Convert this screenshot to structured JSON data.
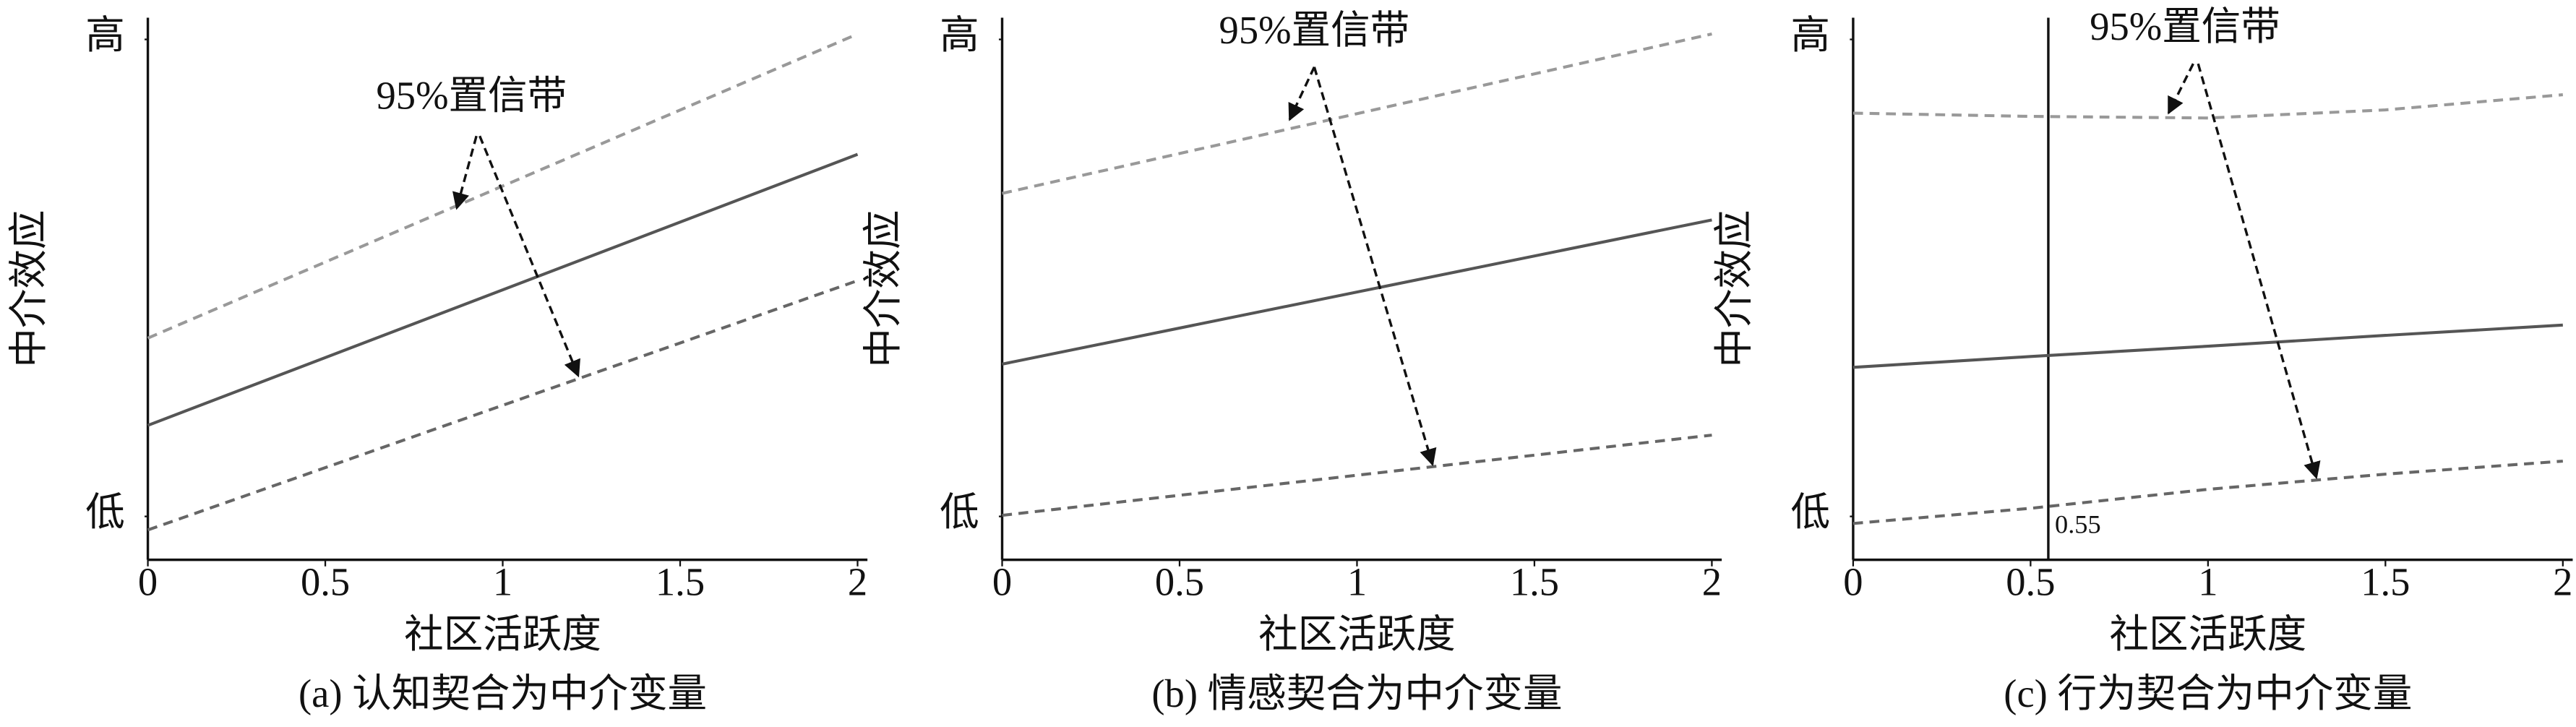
{
  "chart_data": [
    {
      "type": "line",
      "caption": "(a) 认知契合为中介变量",
      "xlabel": "社区活跃度",
      "ylabel": "中介效应",
      "annotation": "95%置信带",
      "x": [
        0,
        2
      ],
      "xlim": [
        0,
        2
      ],
      "xticks": [
        0,
        0.5,
        1,
        1.5,
        2
      ],
      "ylim": [
        0,
        1
      ],
      "yticks": [
        {
          "value": 0.08,
          "label": "低"
        },
        {
          "value": 0.96,
          "label": "高"
        }
      ],
      "series": [
        {
          "color": "#999999",
          "dash": true,
          "values": [
            0.409,
            0.97
          ]
        },
        {
          "color": "#555555",
          "dash": false,
          "values": [
            0.248,
            0.748
          ]
        },
        {
          "color": "#666666",
          "dash": true,
          "values": [
            0.055,
            0.515
          ]
        }
      ]
    },
    {
      "type": "line",
      "caption": "(b) 情感契合为中介变量",
      "xlabel": "社区活跃度",
      "ylabel": "中介效应",
      "annotation": "95%置信带",
      "x": [
        0,
        2
      ],
      "xlim": [
        0,
        2
      ],
      "xticks": [
        0,
        0.5,
        1,
        1.5,
        2
      ],
      "ylim": [
        0,
        1
      ],
      "yticks": [
        {
          "value": 0.08,
          "label": "低"
        },
        {
          "value": 0.96,
          "label": "高"
        }
      ],
      "series": [
        {
          "color": "#999999",
          "dash": true,
          "values": [
            0.676,
            0.97
          ]
        },
        {
          "color": "#555555",
          "dash": false,
          "values": [
            0.361,
            0.627
          ]
        },
        {
          "color": "#666666",
          "dash": true,
          "values": [
            0.082,
            0.23
          ]
        }
      ]
    },
    {
      "type": "line",
      "caption": "(c) 行为契合为中介变量",
      "xlabel": "社区活跃度",
      "ylabel": "中介效应",
      "annotation": "95%置信带",
      "x": [
        0,
        0.5,
        1,
        1.5,
        2
      ],
      "xlim": [
        0,
        2
      ],
      "xticks": [
        0,
        0.5,
        1,
        1.5,
        2
      ],
      "ylim": [
        0,
        1
      ],
      "yticks": [
        {
          "value": 0.08,
          "label": "低"
        },
        {
          "value": 0.96,
          "label": "高"
        }
      ],
      "vline": 0.55,
      "series": [
        {
          "color": "#999999",
          "dash": true,
          "values": [
            0.824,
            0.818,
            0.815,
            0.83,
            0.858
          ]
        },
        {
          "color": "#555555",
          "dash": false,
          "values": [
            0.355,
            0.375,
            0.394,
            0.414,
            0.433
          ]
        },
        {
          "color": "#666666",
          "dash": true,
          "values": [
            0.067,
            0.095,
            0.13,
            0.158,
            0.182
          ]
        }
      ]
    }
  ]
}
